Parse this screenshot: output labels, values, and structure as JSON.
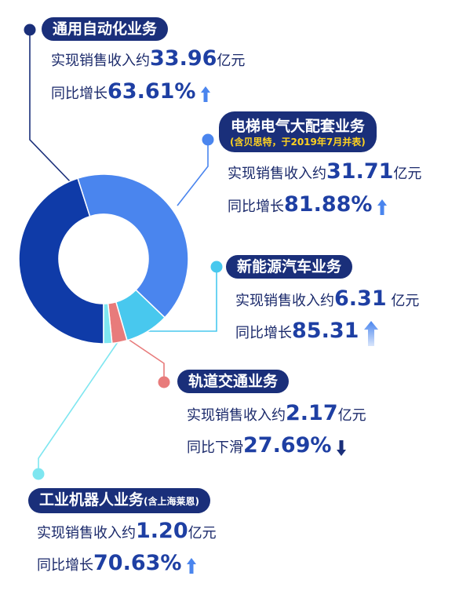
{
  "colors": {
    "dark_blue": "#1a2f7a",
    "general_automation": "#0f3ba8",
    "elevator": "#4a85ee",
    "new_energy": "#48c8ee",
    "rail": "#e87b7b",
    "robot": "#7ee6f0",
    "up_arrow": "#4a85ee",
    "down_arrow": "#1a2f7a"
  },
  "chart_data": {
    "type": "pie",
    "donut": true,
    "unit": "亿元",
    "legend_placement": "labels",
    "categories": [
      "通用自动化业务",
      "电梯电气大配套业务",
      "新能源汽车业务",
      "轨道交通业务",
      "工业机器人业务"
    ],
    "values": [
      33.96,
      31.71,
      6.31,
      2.17,
      1.2
    ],
    "colors": [
      "#0f3ba8",
      "#4a85ee",
      "#48c8ee",
      "#e87b7b",
      "#7ee6f0"
    ]
  },
  "segments": [
    {
      "title": "通用自动化业务",
      "revenue_label": "实现销售收入约",
      "revenue_value": "33.96",
      "revenue_unit": "亿元",
      "growth_label": "同比增长",
      "growth_value": "63.61%",
      "trend": "up-arrow-icon"
    },
    {
      "title": "电梯电气大配套业务",
      "subtitle": "(含贝思特，于2019年7月并表)",
      "revenue_label": "实现销售收入约",
      "revenue_value": "31.71",
      "revenue_unit": "亿元",
      "growth_label": "同比增长",
      "growth_value": "81.88%",
      "trend": "up-arrow-icon"
    },
    {
      "title": "新能源汽车业务",
      "revenue_label": "实现销售收入约",
      "revenue_value": "6.31",
      "revenue_unit": "亿元",
      "growth_label": "同比增长",
      "growth_value": "85.31",
      "trend": "up-arrow-icon"
    },
    {
      "title": "轨道交通业务",
      "revenue_label": "实现销售收入约",
      "revenue_value": "2.17",
      "revenue_unit": "亿元",
      "growth_label": "同比下滑",
      "growth_value": "27.69%",
      "trend": "down-arrow-icon"
    },
    {
      "title": "工业机器人业务",
      "note": "(含上海莱恩)",
      "revenue_label": "实现销售收入约",
      "revenue_value": "1.20",
      "revenue_unit": "亿元",
      "growth_label": "同比增长",
      "growth_value": "70.63%",
      "trend": "up-arrow-icon"
    }
  ]
}
